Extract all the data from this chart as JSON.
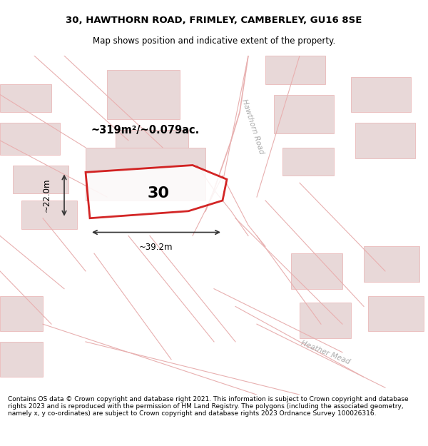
{
  "title_line1": "30, HAWTHORN ROAD, FRIMLEY, CAMBERLEY, GU16 8SE",
  "title_line2": "Map shows position and indicative extent of the property.",
  "area_label": "~319m²/~0.079ac.",
  "property_number": "30",
  "dim_vertical": "~22.0m",
  "dim_horizontal": "~39.2m",
  "road_label1": "Hawthorn Road",
  "road_label2": "Heather Mead",
  "footer": "Contains OS data © Crown copyright and database right 2021. This information is subject to Crown copyright and database rights 2023 and is reproduced with the permission of HM Land Registry. The polygons (including the associated geometry, namely x, y co-ordinates) are subject to Crown copyright and database rights 2023 Ordnance Survey 100026316.",
  "bg_color": "#ffffff",
  "map_bg": "#f9f5f5",
  "building_color": "#e8d8d8",
  "road_line_color": "#e8b0b0",
  "property_outline_color": "#cc0000",
  "title_bg": "#ffffff",
  "footer_bg": "#ffffff",
  "map_border_color": "#cccccc",
  "dim_line_color": "#333333",
  "title_fontsize": 9.5,
  "subtitle_fontsize": 8.5,
  "label_fontsize": 10,
  "road_fontsize": 8,
  "footer_fontsize": 6.5
}
